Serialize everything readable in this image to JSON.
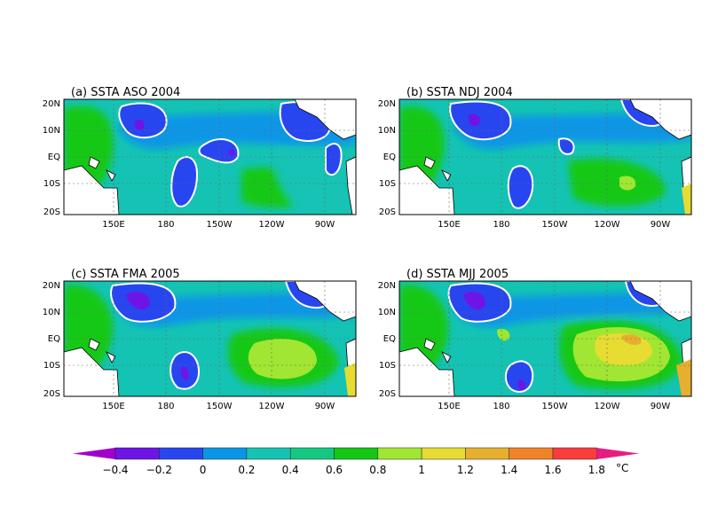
{
  "panels": [
    {
      "title": "(a) SSTA ASO 2004"
    },
    {
      "title": "(b) SSTA NDJ 2004"
    },
    {
      "title": "(c) SSTA FMA 2005"
    },
    {
      "title": "(d) SSTA MJJ 2005"
    }
  ],
  "lat_ticks": [
    "20N",
    "10N",
    "EQ",
    "10S",
    "20S"
  ],
  "lon_ticks": [
    "150E",
    "180",
    "150W",
    "120W",
    "90W"
  ],
  "colorbar": {
    "unit": "°C",
    "labels": [
      "-0.4",
      "-0.2",
      "0",
      "0.2",
      "0.4",
      "0.6",
      "0.8",
      "1",
      "1.2",
      "1.4",
      "1.6",
      "1.8"
    ],
    "colors": [
      "#a000c8",
      "#6e14e6",
      "#2846f0",
      "#0a96e6",
      "#14c3b4",
      "#14c882",
      "#14c814",
      "#a0e632",
      "#e6dc32",
      "#e6af2d",
      "#f08228",
      "#fa3c3c",
      "#e61e82"
    ]
  },
  "colors": {
    "land": "#ffffff",
    "coast": "#000000",
    "zero_contour": "#ffffff",
    "grid": "#666666"
  }
}
